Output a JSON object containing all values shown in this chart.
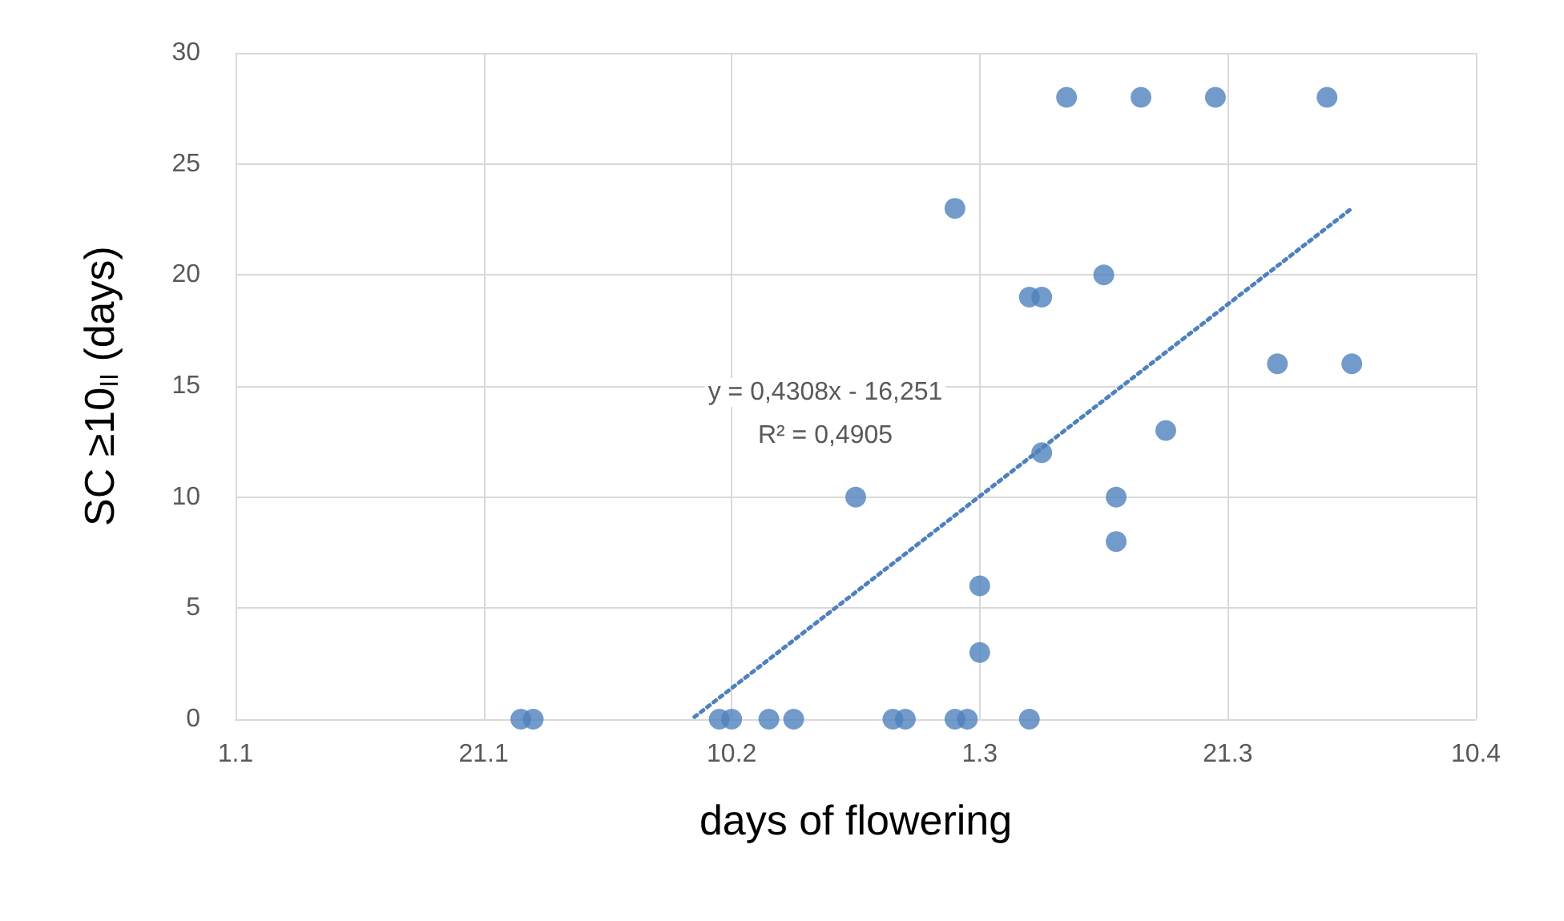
{
  "chart_data": {
    "type": "scatter",
    "xlabel": "days of flowering",
    "ylabel": "SC ≥10$_{II}$ (days)",
    "xlim": [
      "--01-01",
      "--04-10"
    ],
    "xticks": [
      {
        "value": "--01-01",
        "label": "1.1"
      },
      {
        "value": "--01-21",
        "label": "21.1"
      },
      {
        "value": "--02-10",
        "label": "10.2"
      },
      {
        "value": "--03-01",
        "label": "1.3"
      },
      {
        "value": "--03-21",
        "label": "21.3"
      },
      {
        "value": "--04-10",
        "label": "10.4"
      }
    ],
    "ylim": [
      0,
      30
    ],
    "yticks": [
      0,
      5,
      10,
      15,
      20,
      25,
      30
    ],
    "grid": true,
    "marker": "circle",
    "annotations": [
      "y = 0,4308x - 16,251",
      "R² = 0,4905"
    ],
    "series": [
      {
        "color": "#4f81bd",
        "x": [
          "--01-24",
          "--01-25",
          "--02-09",
          "--02-10",
          "--02-13",
          "--02-15",
          "--02-23",
          "--02-24",
          "--02-28",
          "--02-29",
          "--03-05",
          "--02-20",
          "--02-28",
          "--03-01",
          "--03-01",
          "--03-05",
          "--03-06",
          "--03-06",
          "--03-08",
          "--03-11",
          "--03-12",
          "--03-12",
          "--03-14",
          "--03-16",
          "--03-20",
          "--03-25",
          "--03-29",
          "--03-31"
        ],
        "values": [
          0,
          0,
          0,
          0,
          0,
          0,
          0,
          0,
          0,
          0,
          0,
          10,
          23,
          6,
          3,
          19,
          19,
          12,
          28,
          20,
          10,
          8,
          28,
          13,
          28,
          16,
          28,
          16
        ]
      },
      {
        "type": "line",
        "color": "#4f81bd",
        "line_style": "dotted",
        "marker": "none",
        "x": [
          "--02-07",
          "--03-31"
        ],
        "values": [
          0.1,
          23
        ]
      }
    ]
  }
}
